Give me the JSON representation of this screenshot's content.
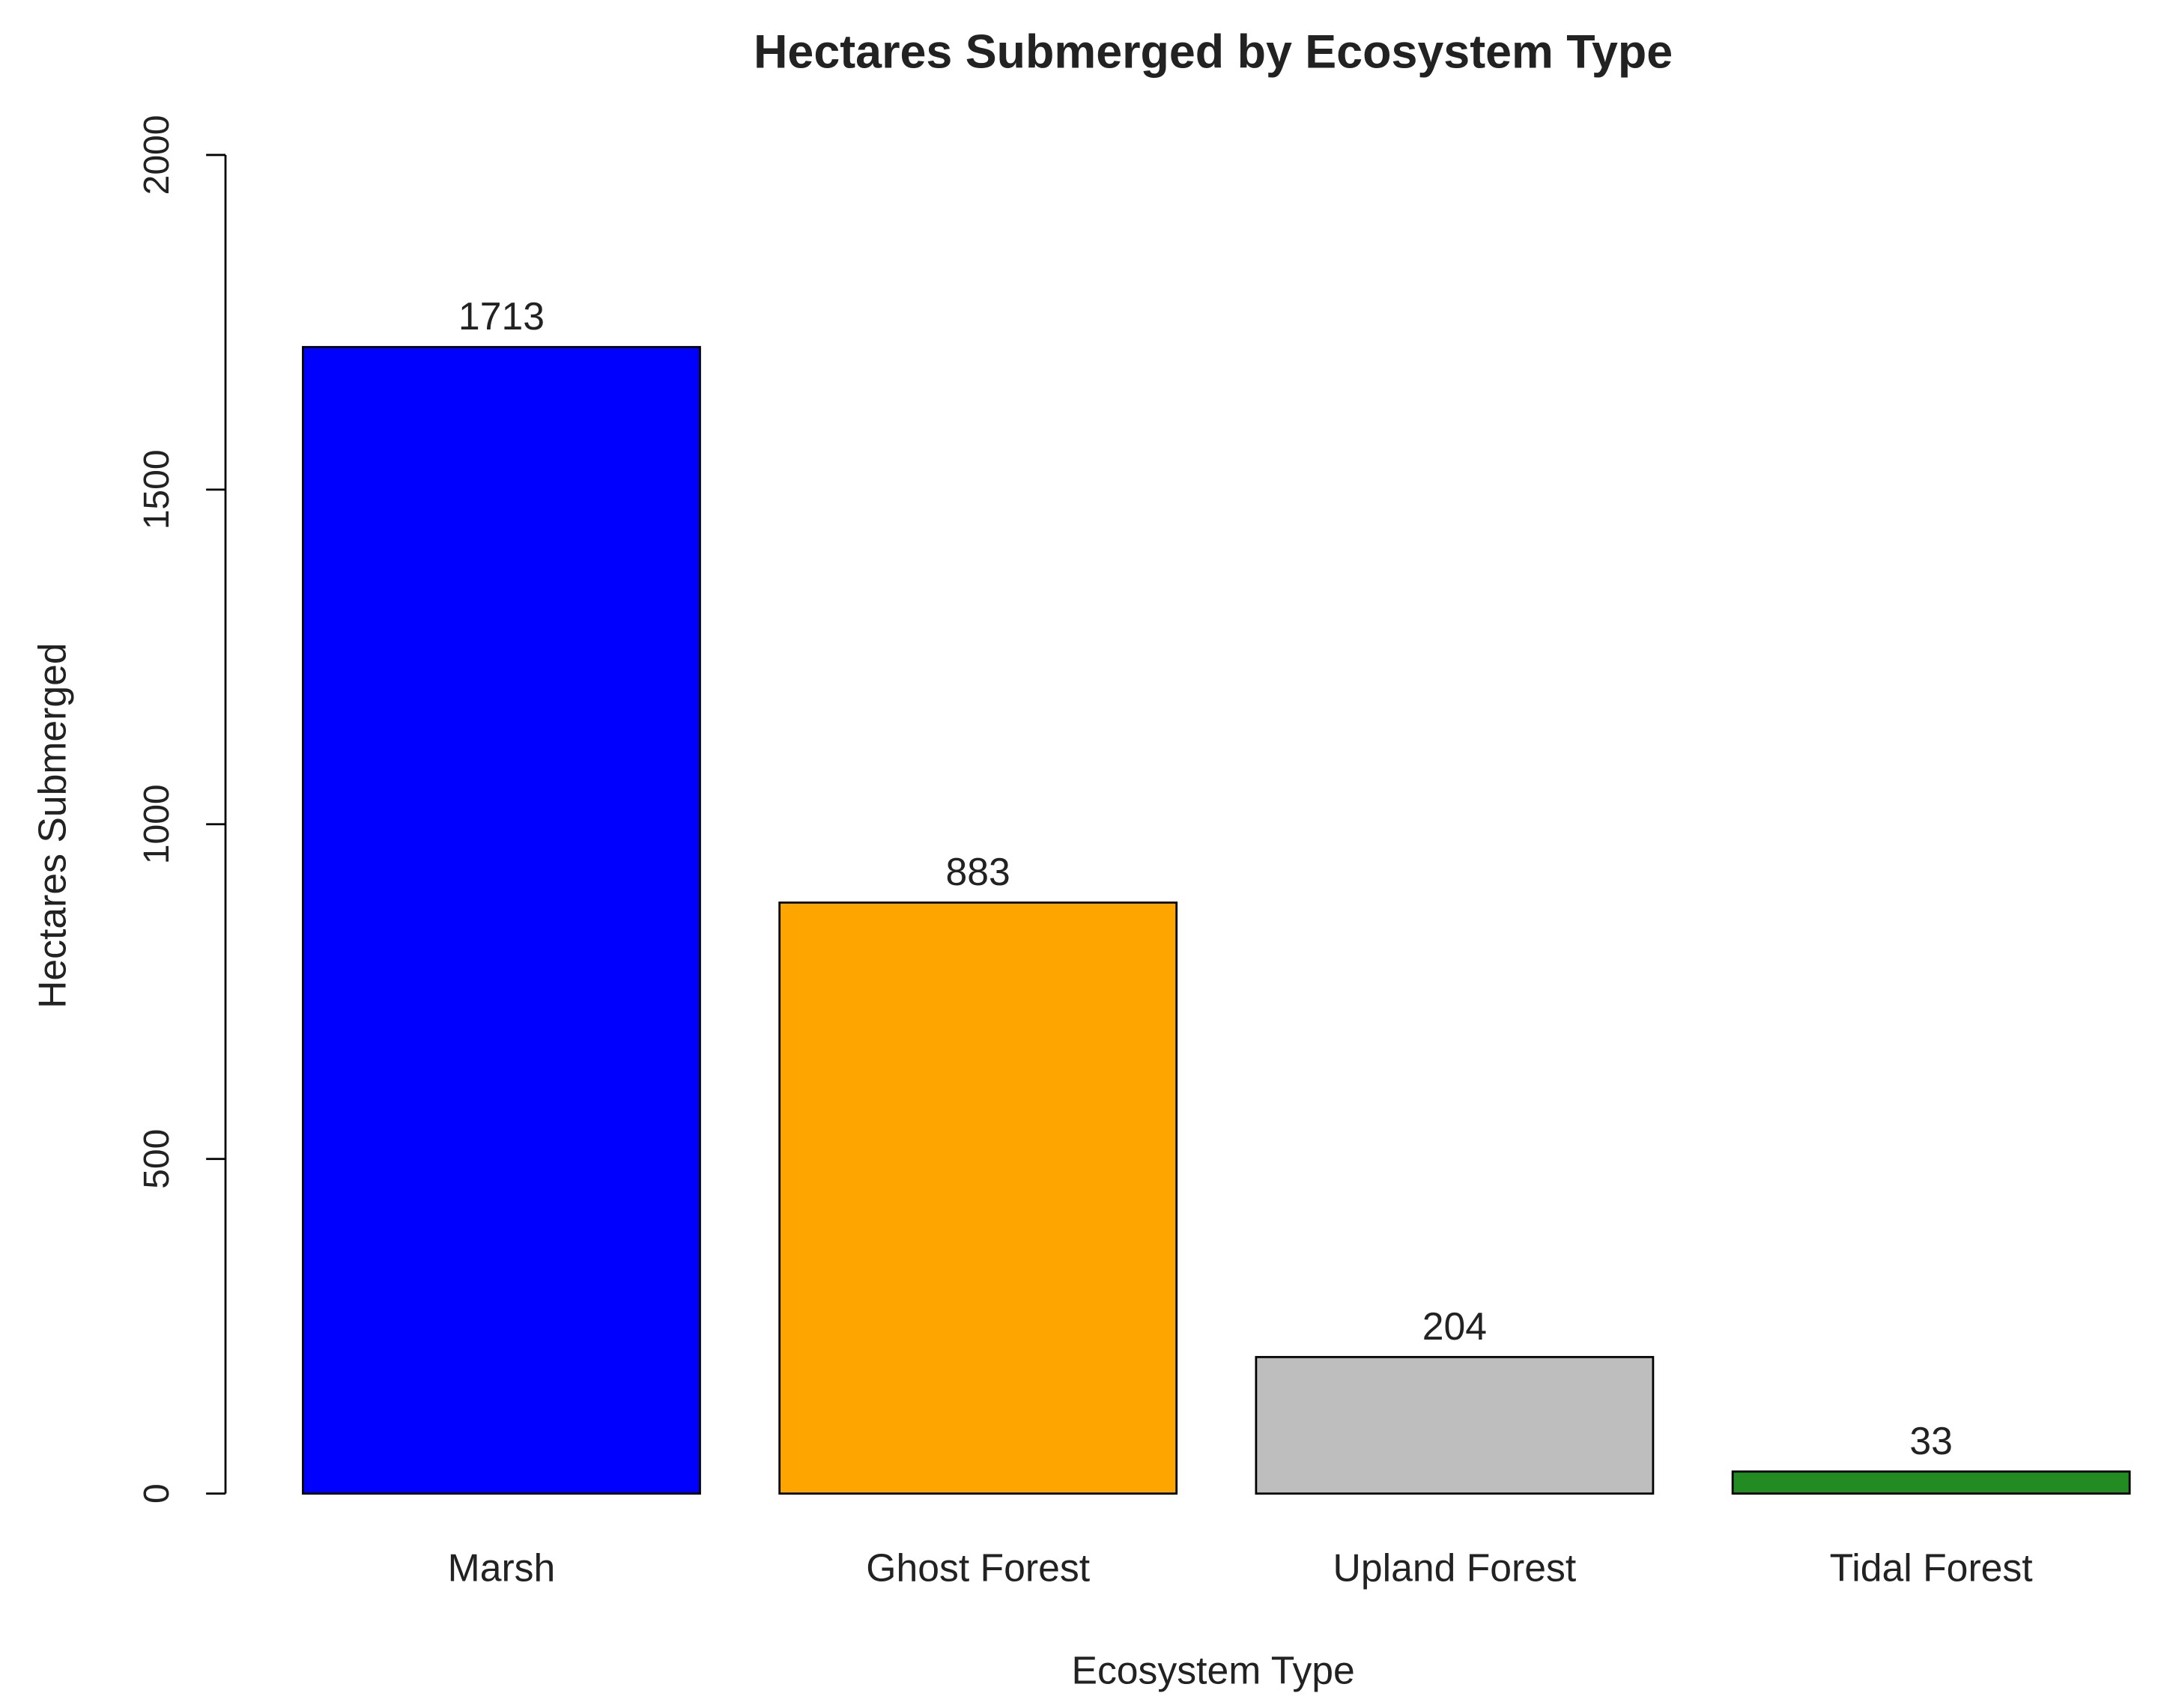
{
  "chart_data": {
    "type": "bar",
    "title": "Hectares Submerged by Ecosystem Type",
    "x_label": "Ecosystem Type",
    "y_label": "Hectares Submerged",
    "categories": [
      "Marsh",
      "Ghost Forest",
      "Upland Forest",
      "Tidal Forest"
    ],
    "values": [
      1713,
      883,
      204,
      33
    ],
    "colors": [
      "#0000ff",
      "#ffa500",
      "#bebebe",
      "#228b22"
    ],
    "ylim": [
      0,
      2000
    ],
    "yticks": [
      0,
      500,
      1000,
      1500,
      2000
    ]
  }
}
